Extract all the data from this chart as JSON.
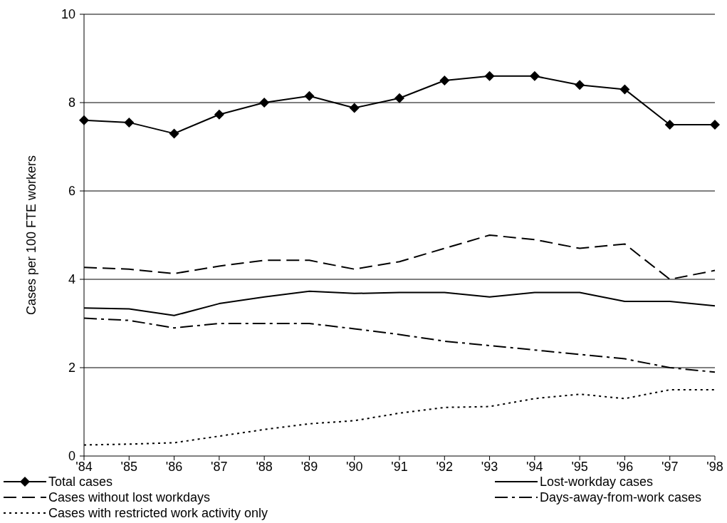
{
  "chart_data": {
    "type": "line",
    "ylabel": "Cases per 100 FTE workers",
    "categories": [
      "'84",
      "'85",
      "'86",
      "'87",
      "'88",
      "'89",
      "'90",
      "'91",
      "'92",
      "'93",
      "'94",
      "'95",
      "'96",
      "'97",
      "'98"
    ],
    "ylim": [
      0,
      10
    ],
    "yticks": [
      0,
      2,
      4,
      6,
      8,
      10
    ],
    "grid": "y",
    "legend": "bottom",
    "series": [
      {
        "name": "Total cases",
        "color": "#000000",
        "marker": "diamond",
        "line_style": "solid",
        "values": [
          7.6,
          7.55,
          7.3,
          7.73,
          8.0,
          8.15,
          7.88,
          8.1,
          8.5,
          8.6,
          8.6,
          8.4,
          8.3,
          7.5,
          7.5
        ]
      },
      {
        "name": "Lost-workday cases",
        "color": "#000000",
        "marker": "none",
        "line_style": "solid",
        "values": [
          3.35,
          3.33,
          3.18,
          3.45,
          3.6,
          3.73,
          3.68,
          3.7,
          3.7,
          3.6,
          3.7,
          3.7,
          3.5,
          3.5,
          3.4
        ]
      },
      {
        "name": "Cases without lost workdays",
        "color": "#000000",
        "marker": "none",
        "line_style": "dashed",
        "values": [
          4.27,
          4.23,
          4.13,
          4.3,
          4.43,
          4.43,
          4.23,
          4.4,
          4.7,
          5.0,
          4.9,
          4.7,
          4.8,
          4.0,
          4.2
        ]
      },
      {
        "name": "Days-away-from-work cases",
        "color": "#000000",
        "marker": "none",
        "line_style": "dashdot",
        "values": [
          3.12,
          3.07,
          2.9,
          3.0,
          3.0,
          3.0,
          2.88,
          2.75,
          2.6,
          2.5,
          2.4,
          2.3,
          2.2,
          2.0,
          1.9
        ]
      },
      {
        "name": "Cases with restricted work activity only",
        "color": "#000000",
        "marker": "none",
        "line_style": "dotted",
        "values": [
          0.25,
          0.27,
          0.3,
          0.45,
          0.6,
          0.73,
          0.8,
          0.97,
          1.1,
          1.12,
          1.3,
          1.4,
          1.3,
          1.5,
          1.5
        ]
      }
    ]
  }
}
